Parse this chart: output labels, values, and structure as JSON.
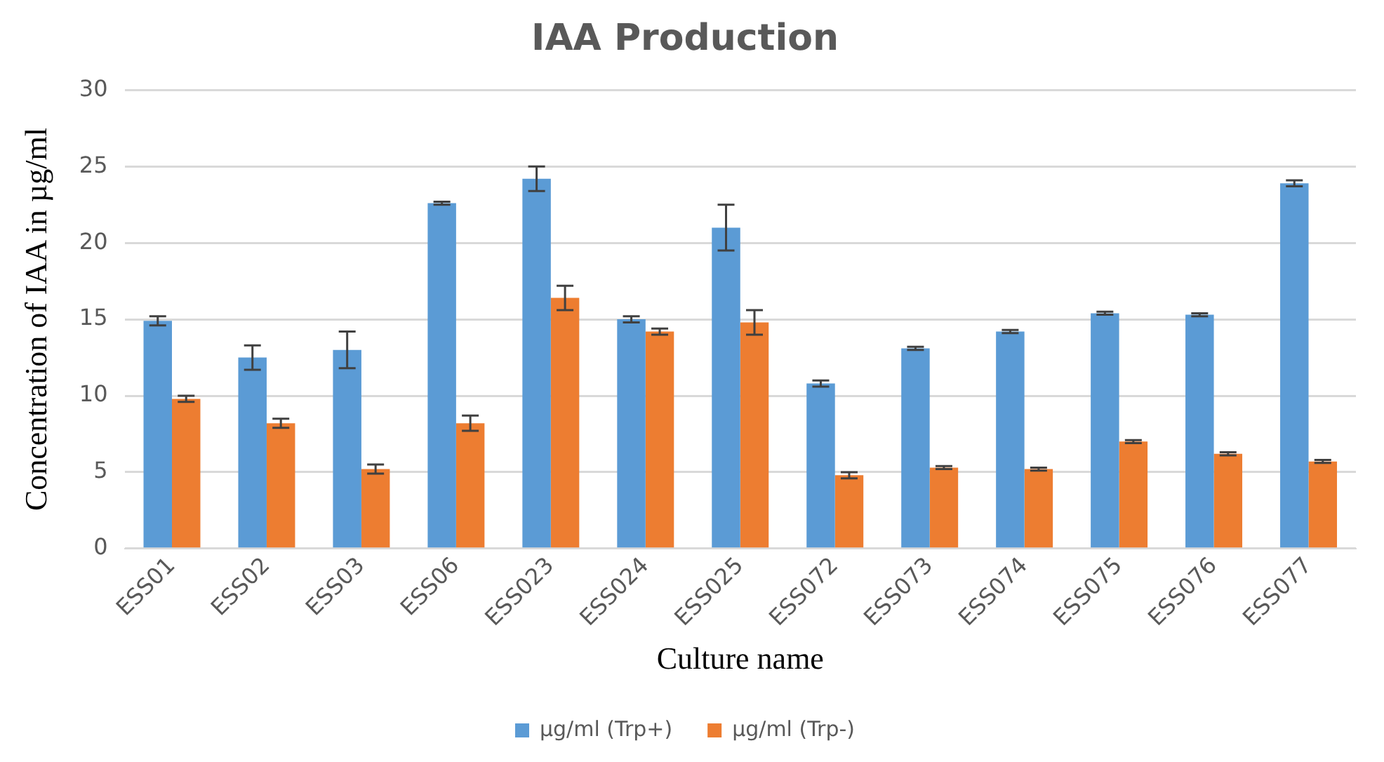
{
  "chart_data": {
    "type": "bar",
    "title": "IAA Production",
    "xlabel": "Culture name",
    "ylabel": "Concentration of IAA in µg/ml",
    "categories": [
      "ESS01",
      "ESS02",
      "ESS03",
      "ESS06",
      "ESS023",
      "ESS024",
      "ESS025",
      "ESS072",
      "ESS073",
      "ESS074",
      "ESS075",
      "ESS076",
      "ESS077"
    ],
    "series": [
      {
        "name": "µg/ml (Trp+)",
        "color": "#5b9bd5",
        "values": [
          14.9,
          12.5,
          13.0,
          22.6,
          24.2,
          15.0,
          21.0,
          10.8,
          13.1,
          14.2,
          15.4,
          15.3,
          23.9
        ],
        "errors": [
          0.3,
          0.8,
          1.2,
          0.1,
          0.8,
          0.2,
          1.5,
          0.2,
          0.1,
          0.1,
          0.1,
          0.1,
          0.2
        ]
      },
      {
        "name": "µg/ml (Trp-)",
        "color": "#ed7d31",
        "values": [
          9.8,
          8.2,
          5.2,
          8.2,
          16.4,
          14.2,
          14.8,
          4.8,
          5.3,
          5.2,
          7.0,
          6.2,
          5.7
        ],
        "errors": [
          0.2,
          0.3,
          0.3,
          0.5,
          0.8,
          0.2,
          0.8,
          0.2,
          0.1,
          0.1,
          0.1,
          0.1,
          0.1
        ]
      }
    ],
    "ylim": [
      0,
      30
    ],
    "yticks": [
      0,
      5,
      10,
      15,
      20,
      25,
      30
    ],
    "grid": "y",
    "legend": "bottom"
  }
}
